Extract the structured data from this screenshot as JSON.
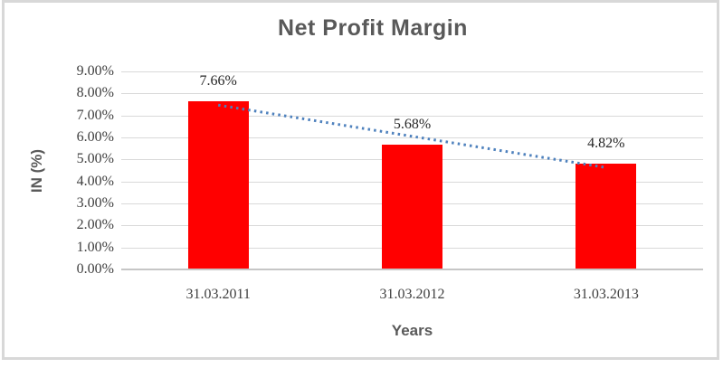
{
  "chart_data": {
    "type": "bar",
    "title": "Net Profit Margin",
    "xlabel": "Years",
    "ylabel": "IN (%)",
    "categories": [
      "31.03.2011",
      "31.03.2012",
      "31.03.2013"
    ],
    "values": [
      7.66,
      5.68,
      4.82
    ],
    "data_labels": [
      "7.66%",
      "5.68%",
      "4.82%"
    ],
    "ylim": [
      0,
      9
    ],
    "ytick_labels": [
      "0.00%",
      "1.00%",
      "2.00%",
      "3.00%",
      "4.00%",
      "5.00%",
      "6.00%",
      "7.00%",
      "8.00%",
      "9.00%"
    ],
    "grid": "horizontal",
    "legend": "none",
    "bar_color": "#ff0000",
    "trendline": {
      "type": "linear",
      "line_style": "dotted",
      "color": "#4e81bd",
      "endpoint_values": [
        7.47,
        4.63
      ]
    }
  },
  "styles": {
    "frame_color": "#d8d8d8",
    "title_color": "#595959",
    "axis_title_color": "#595959",
    "tick_label_color": "#404040",
    "data_label_color": "#262626",
    "gridline_color": "#d9d9d9",
    "axis_line_color": "#c6c6c6"
  }
}
